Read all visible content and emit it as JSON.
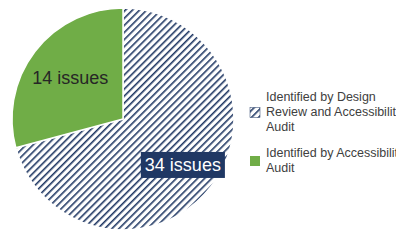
{
  "chart_data": {
    "type": "pie",
    "categories": [
      "Identified by Design Review and Accessibility Audit",
      "Identified by Accessibility Audit"
    ],
    "values": [
      34,
      14
    ],
    "value_labels": [
      "34 issues",
      "14 issues"
    ],
    "colors": [
      "#203864",
      "#70ad47"
    ],
    "data_labels": true,
    "legend": "right"
  }
}
